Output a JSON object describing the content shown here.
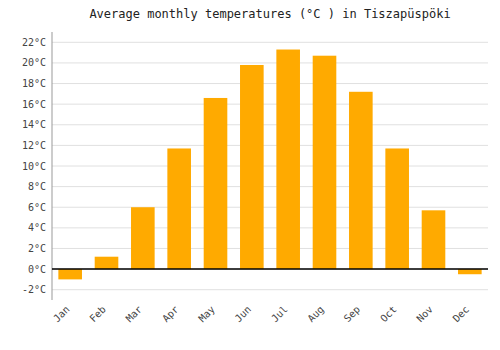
{
  "chart_data": {
    "type": "bar",
    "title": "Average monthly temperatures (°C ) in Tiszapüspöki",
    "categories": [
      "Jan",
      "Feb",
      "Mar",
      "Apr",
      "May",
      "Jun",
      "Jul",
      "Aug",
      "Sep",
      "Oct",
      "Nov",
      "Dec"
    ],
    "values": [
      -1.0,
      1.2,
      6.0,
      11.7,
      16.6,
      19.8,
      21.3,
      20.7,
      17.2,
      11.7,
      5.7,
      -0.5
    ],
    "color": "#FFAA00",
    "ylim": [
      -3,
      23
    ],
    "yticks": [
      {
        "value": -2,
        "label": "-2°C"
      },
      {
        "value": 0,
        "label": "0°C"
      },
      {
        "value": 2,
        "label": "2°C"
      },
      {
        "value": 4,
        "label": "4°C"
      },
      {
        "value": 6,
        "label": "6°C"
      },
      {
        "value": 8,
        "label": "8°C"
      },
      {
        "value": 10,
        "label": "10°C"
      },
      {
        "value": 12,
        "label": "12°C"
      },
      {
        "value": 14,
        "label": "14°C"
      },
      {
        "value": 16,
        "label": "16°C"
      },
      {
        "value": 18,
        "label": "18°C"
      },
      {
        "value": 20,
        "label": "20°C"
      },
      {
        "value": 22,
        "label": "22°C"
      }
    ],
    "grid": true
  }
}
